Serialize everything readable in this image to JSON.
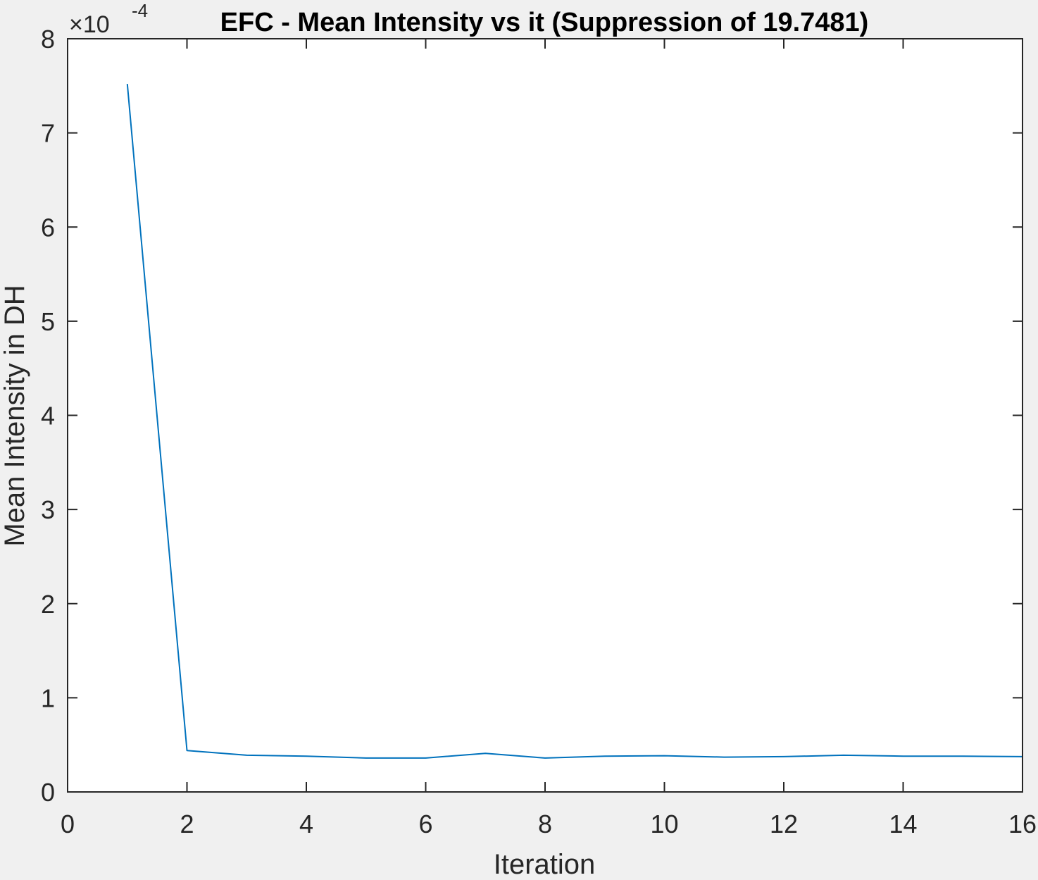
{
  "chart_data": {
    "type": "line",
    "title": "EFC - Mean Intensity vs it (Suppression of 19.7481)",
    "xlabel": "Iteration",
    "ylabel": "Mean Intensity in DH",
    "y_exponent_label": "×10",
    "y_exponent_power": "-4",
    "xlim": [
      0,
      16
    ],
    "ylim": [
      0,
      8
    ],
    "x_ticks": [
      0,
      2,
      4,
      6,
      8,
      10,
      12,
      14,
      16
    ],
    "y_ticks": [
      0,
      1,
      2,
      3,
      4,
      5,
      6,
      7,
      8
    ],
    "grid": false,
    "series": [
      {
        "color": "#0072BD",
        "x": [
          1,
          2,
          3,
          4,
          5,
          6,
          7,
          8,
          9,
          10,
          11,
          12,
          13,
          14,
          15,
          16
        ],
        "y": [
          7.52,
          0.44,
          0.39,
          0.38,
          0.36,
          0.36,
          0.41,
          0.36,
          0.38,
          0.385,
          0.37,
          0.375,
          0.39,
          0.38,
          0.38,
          0.375
        ]
      }
    ]
  }
}
